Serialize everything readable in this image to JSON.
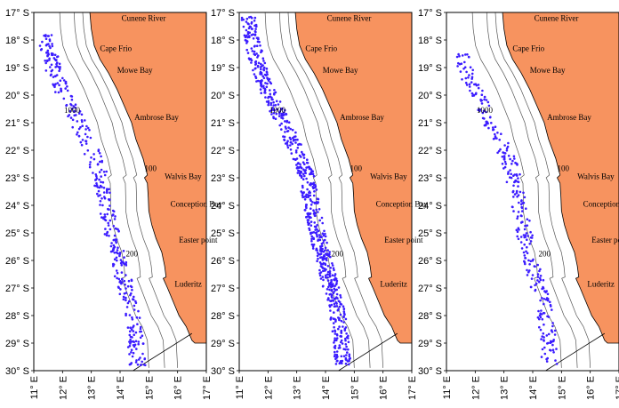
{
  "colors": {
    "land": "#f7935f",
    "points": "#3b1cff",
    "contour": "#555555",
    "frame": "#000000"
  },
  "lat_ticks": [
    "17° S",
    "18° S",
    "19° S",
    "20° S",
    "21° S",
    "22° S",
    "23° S",
    "24° S",
    "25° S",
    "26° S",
    "27° S",
    "28° S",
    "29° S",
    "30° S"
  ],
  "lon_ticks": [
    "11° E",
    "12° E",
    "13° E",
    "14° E",
    "15° E",
    "16° E",
    "17° E"
  ],
  "places": [
    {
      "name": "Cunene River",
      "lon": 14.05,
      "lat": 17.3
    },
    {
      "name": "Cape Frio",
      "lon": 13.3,
      "lat": 18.4
    },
    {
      "name": "Mowe Bay",
      "lon": 13.9,
      "lat": 19.2
    },
    {
      "name": "Ambrose Bay",
      "lon": 14.5,
      "lat": 20.9
    },
    {
      "name": "Walvis Bay",
      "lon": 15.55,
      "lat": 23.05
    },
    {
      "name": "Conception Bay",
      "lon": 15.75,
      "lat": 24.05
    },
    {
      "name": "Easter point",
      "lon": 16.05,
      "lat": 25.35
    },
    {
      "name": "Luderitz",
      "lon": 15.9,
      "lat": 26.95
    }
  ],
  "depth_labels": [
    {
      "text": "1000",
      "lon": 12.05,
      "lat": 20.65
    },
    {
      "text": "100",
      "lon": 14.85,
      "lat": 22.75
    },
    {
      "text": "200",
      "lon": 14.2,
      "lat": 25.85
    }
  ],
  "panels": [
    {
      "id": "left",
      "density": 0.55
    },
    {
      "id": "middle",
      "density": 1.0
    },
    {
      "id": "right",
      "density": 0.45
    }
  ]
}
